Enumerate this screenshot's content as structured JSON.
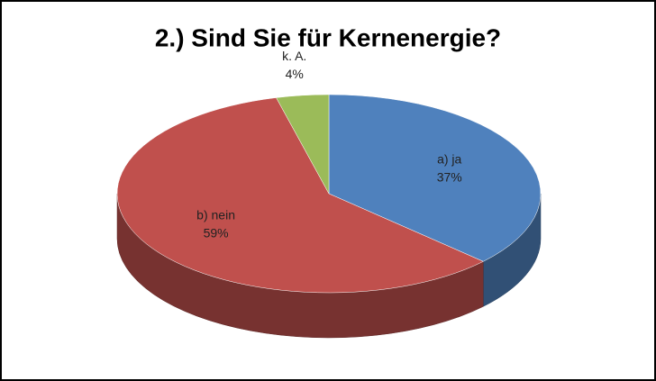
{
  "chart_data": {
    "type": "pie",
    "title": "2.) Sind Sie für Kernenergie?",
    "categories": [
      "a) ja",
      "b) nein",
      "k. A."
    ],
    "values": [
      37,
      59,
      4
    ],
    "value_labels": [
      "37%",
      "59%",
      "4%"
    ],
    "colors": [
      "#4f81bd",
      "#c0504d",
      "#9bbb59"
    ]
  }
}
